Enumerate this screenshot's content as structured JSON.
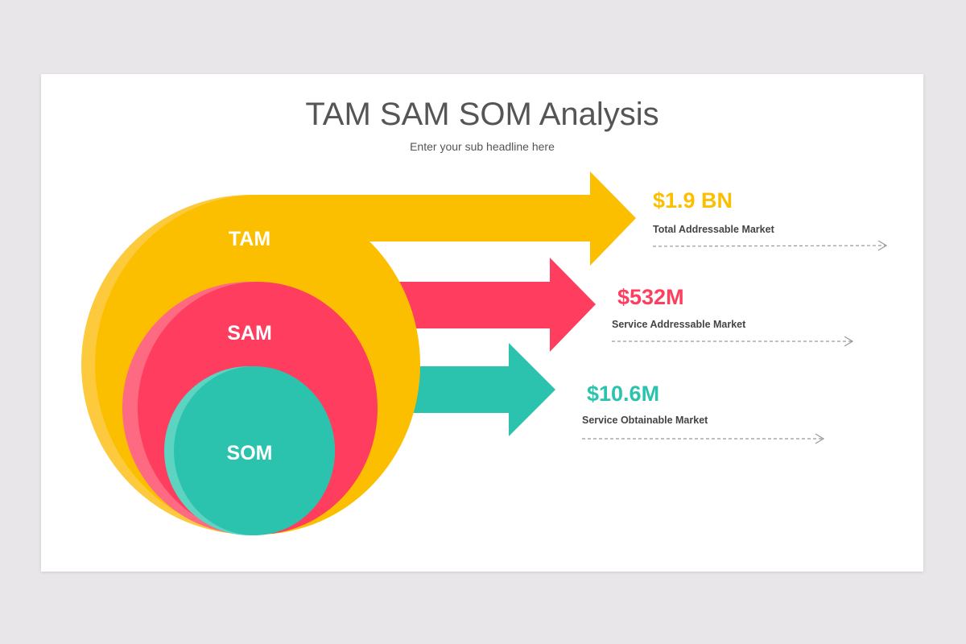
{
  "title": "TAM SAM SOM Analysis",
  "subtitle": "Enter your sub headline here",
  "colors": {
    "tam": "#fcbf00",
    "sam": "#fe3d5f",
    "som": "#2bc3ad",
    "text": "#555555",
    "background": "#e8e6e8"
  },
  "markets": [
    {
      "label": "TAM",
      "value": "$1.9 BN",
      "description": "Total Addressable Market"
    },
    {
      "label": "SAM",
      "value": "$532M",
      "description": "Service Addressable Market"
    },
    {
      "label": "SOM",
      "value": "$10.6M",
      "description": "Service Obtainable Market"
    }
  ]
}
